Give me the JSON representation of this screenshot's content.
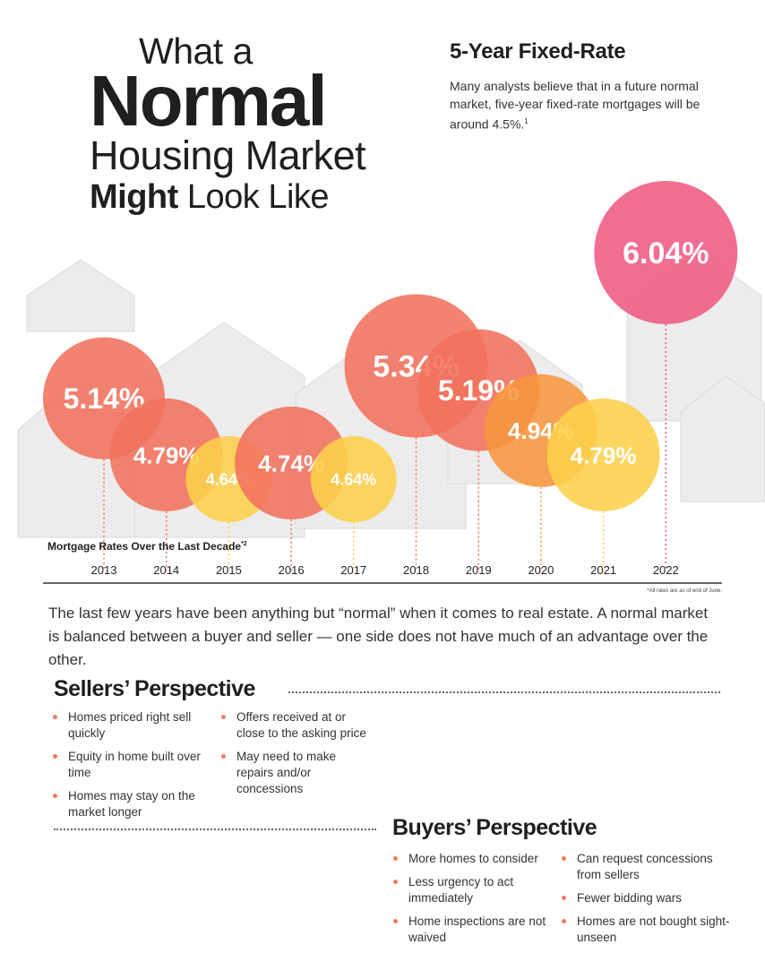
{
  "headline": {
    "line1": "What a",
    "line2": "Normal",
    "line3": "Housing Market",
    "line4_bold": "Might",
    "line4_rest": " Look Like"
  },
  "fixed_rate": {
    "title": "5-Year Fixed-Rate",
    "text": "Many analysts believe that in a future normal market, five-year fixed-rate mortgages will be around 4.5%.",
    "footnote_mark": "1"
  },
  "chart_data": {
    "type": "scatter",
    "title": "Mortgage Rates Over the Last Decade",
    "footnote_mark": "*2",
    "note": "*All rates are as of end of June.",
    "categories": [
      "2013",
      "2014",
      "2015",
      "2016",
      "2017",
      "2018",
      "2019",
      "2020",
      "2021",
      "2022"
    ],
    "values": [
      5.14,
      4.79,
      4.64,
      4.74,
      4.64,
      5.34,
      5.19,
      4.94,
      4.79,
      6.04
    ],
    "labels": [
      "5.14%",
      "4.79%",
      "4.64%",
      "4.74%",
      "4.64%",
      "5.34%",
      "5.19%",
      "4.94%",
      "4.79%",
      "6.04%"
    ],
    "colors": [
      "#f1715c",
      "#f1715c",
      "#fcd04a",
      "#f1715c",
      "#fcd04a",
      "#f1715c",
      "#f1715c",
      "#f7963e",
      "#fcd04a",
      "#ef5a82"
    ],
    "ylabel": "",
    "xlabel": ""
  },
  "intro": "The last few years have been anything but “normal” when it comes to real estate. A normal market is balanced between a buyer and seller — one side does not have much of an advantage over the other.",
  "sellers": {
    "title": "Sellers’ Perspective",
    "col1": [
      "Homes priced right sell quickly",
      "Equity in home built over time",
      "Homes may stay on the market longer"
    ],
    "col2": [
      "Offers received at or close to the asking price",
      "May need to make repairs and/or concessions"
    ]
  },
  "buyers": {
    "title": "Buyers’ Perspective",
    "col1": [
      "More homes to consider",
      "Less urgency to act immediately",
      "Home inspections are not waived"
    ],
    "col2": [
      "Can request concessions from sellers",
      "Fewer bidding wars",
      "Homes are not bought sight-unseen"
    ]
  }
}
